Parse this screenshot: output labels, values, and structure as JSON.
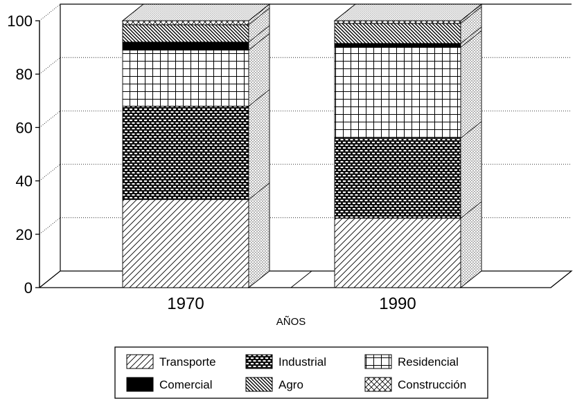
{
  "chart_data": {
    "type": "bar",
    "stacked": true,
    "three_d": true,
    "title": "",
    "xlabel": "AÑOS",
    "ylabel": "",
    "ylim": [
      0,
      100
    ],
    "yticks": [
      0,
      20,
      40,
      60,
      80,
      100
    ],
    "grid": true,
    "legend_position": "bottom",
    "categories": [
      "1970",
      "1990"
    ],
    "series": [
      {
        "name": "Transporte",
        "values": [
          33,
          26
        ],
        "pattern": "diagonal-hatch-light",
        "color": "#ffffff"
      },
      {
        "name": "Industrial",
        "values": [
          35,
          30
        ],
        "pattern": "brick",
        "color": "#222222"
      },
      {
        "name": "Residencial",
        "values": [
          21,
          34
        ],
        "pattern": "grid",
        "color": "#ffffff"
      },
      {
        "name": "Comercial",
        "values": [
          3,
          1.5
        ],
        "pattern": "solid",
        "color": "#000000"
      },
      {
        "name": "Agro",
        "values": [
          6.5,
          7.5
        ],
        "pattern": "diagonal-hatch-dense",
        "color": "#333333"
      },
      {
        "name": "Construcción",
        "values": [
          1.5,
          1
        ],
        "pattern": "crosshatch",
        "color": "#ffffff"
      }
    ]
  }
}
